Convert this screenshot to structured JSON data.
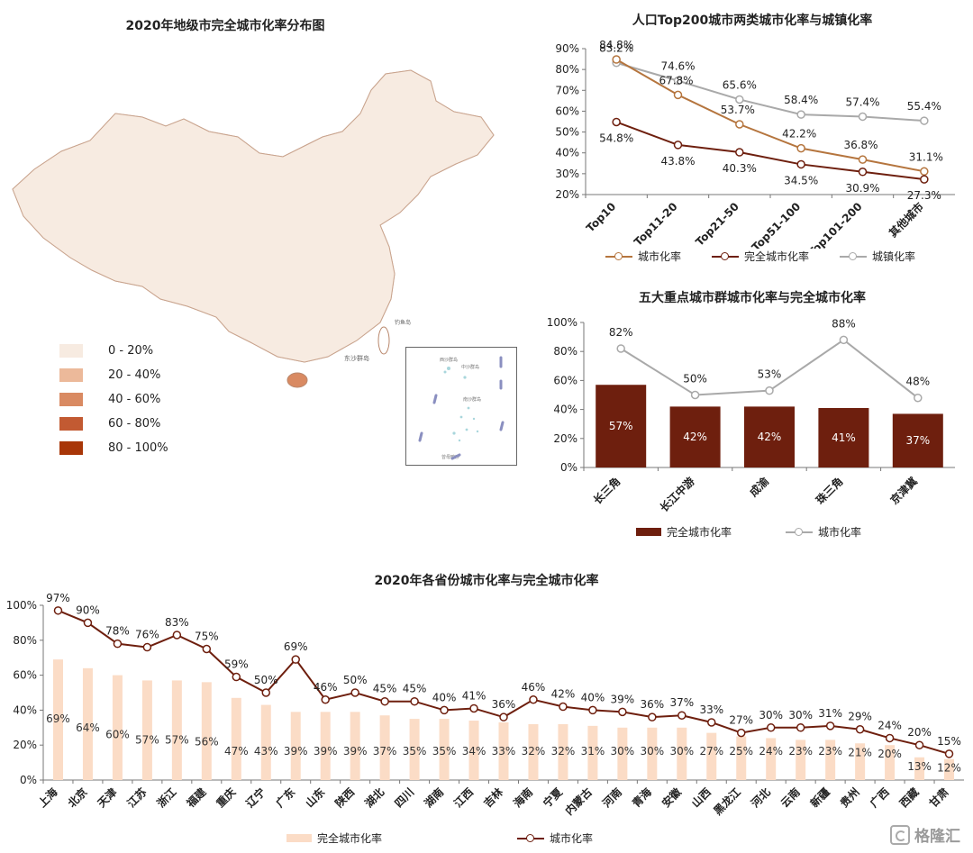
{
  "map_panel": {
    "title": "2020年地级市完全城市化率分布图",
    "legend": [
      {
        "label": "0 - 20%",
        "color": "#f7ebe1"
      },
      {
        "label": "20 - 40%",
        "color": "#ecb99a"
      },
      {
        "label": "40 - 60%",
        "color": "#d98a62"
      },
      {
        "label": "60 - 80%",
        "color": "#c25a32"
      },
      {
        "label": "80 - 100%",
        "color": "#a83608"
      }
    ],
    "labels": {
      "diaoyu": "钓鱼岛",
      "chiwei": "赤尾屿",
      "dongsha": "东沙群岛",
      "xisha": "西沙群岛",
      "zhongsha": "中沙群岛",
      "nansha": "南沙群岛",
      "zengmu": "曾母暗沙"
    }
  },
  "chart_data": [
    {
      "id": "top200",
      "type": "line",
      "title": "人口Top200城市两类城市化率与城镇化率",
      "categories": [
        "Top10",
        "Top11-20",
        "Top21-50",
        "Top51-100",
        "Top101-200",
        "其他城市"
      ],
      "ylim": [
        20,
        90
      ],
      "yticks": [
        "20%",
        "30%",
        "40%",
        "50%",
        "60%",
        "70%",
        "80%",
        "90%"
      ],
      "series": [
        {
          "name": "城市化率",
          "color": "#b5753e",
          "values": [
            84.8,
            67.8,
            53.7,
            42.2,
            36.8,
            31.1
          ],
          "labels": [
            "84.8%",
            "67.8%",
            "53.7%",
            "42.2%",
            "36.8%",
            "31.1%"
          ]
        },
        {
          "name": "完全城市化率",
          "color": "#6e1f0e",
          "values": [
            54.8,
            43.8,
            40.3,
            34.5,
            30.9,
            27.3
          ],
          "labels": [
            "54.8%",
            "43.8%",
            "40.3%",
            "34.5%",
            "30.9%",
            "27.3%"
          ]
        },
        {
          "name": "城镇化率",
          "color": "#a9a9a9",
          "values": [
            83.2,
            74.6,
            65.6,
            58.4,
            57.4,
            55.4
          ],
          "labels": [
            "83.2%",
            "74.6%",
            "65.6%",
            "58.4%",
            "57.4%",
            "55.4%"
          ]
        }
      ]
    },
    {
      "id": "clusters",
      "type": "bar",
      "title": "五大重点城市群城市化率与完全城市化率",
      "categories": [
        "长三角",
        "长江中游",
        "成渝",
        "珠三角",
        "京津冀"
      ],
      "ylim": [
        0,
        100
      ],
      "yticks": [
        "0%",
        "20%",
        "40%",
        "60%",
        "80%",
        "100%"
      ],
      "series": [
        {
          "name": "完全城市化率",
          "kind": "bar",
          "color": "#6e1f0e",
          "values": [
            57,
            42,
            42,
            41,
            37
          ],
          "labels": [
            "57%",
            "42%",
            "42%",
            "41%",
            "37%"
          ]
        },
        {
          "name": "城市化率",
          "kind": "line",
          "color": "#a9a9a9",
          "values": [
            82,
            50,
            53,
            88,
            48
          ],
          "labels": [
            "82%",
            "50%",
            "53%",
            "88%",
            "48%"
          ]
        }
      ]
    },
    {
      "id": "provinces",
      "type": "bar",
      "title": "2020年各省份城市化率与完全城市化率",
      "categories": [
        "上海",
        "北京",
        "天津",
        "江苏",
        "浙江",
        "福建",
        "重庆",
        "辽宁",
        "广东",
        "山东",
        "陕西",
        "湖北",
        "四川",
        "湖南",
        "江西",
        "吉林",
        "海南",
        "宁夏",
        "内蒙古",
        "河南",
        "青海",
        "安徽",
        "山西",
        "黑龙江",
        "河北",
        "云南",
        "新疆",
        "贵州",
        "广西",
        "西藏",
        "甘肃"
      ],
      "ylim": [
        0,
        100
      ],
      "yticks": [
        "0%",
        "20%",
        "40%",
        "60%",
        "80%",
        "100%"
      ],
      "series": [
        {
          "name": "完全城市化率",
          "kind": "bar",
          "color": "#fbdcc6",
          "values": [
            69,
            64,
            60,
            57,
            57,
            56,
            47,
            43,
            39,
            39,
            39,
            37,
            35,
            35,
            34,
            33,
            32,
            32,
            31,
            30,
            30,
            30,
            27,
            25,
            24,
            23,
            23,
            21,
            20,
            13,
            12
          ],
          "labels": [
            "69%",
            "64%",
            "60%",
            "57%",
            "57%",
            "56%",
            "47%",
            "43%",
            "39%",
            "39%",
            "39%",
            "37%",
            "35%",
            "35%",
            "34%",
            "33%",
            "32%",
            "32%",
            "31%",
            "30%",
            "30%",
            "30%",
            "27%",
            "25%",
            "24%",
            "23%",
            "23%",
            "21%",
            "20%",
            "13%",
            "12%"
          ]
        },
        {
          "name": "城市化率",
          "kind": "line",
          "color": "#6e1f0e",
          "values": [
            97,
            90,
            78,
            76,
            83,
            75,
            59,
            50,
            69,
            46,
            50,
            45,
            45,
            40,
            41,
            36,
            46,
            42,
            40,
            39,
            36,
            37,
            33,
            27,
            30,
            30,
            31,
            29,
            24,
            20,
            15
          ],
          "labels": [
            "97%",
            "90%",
            "78%",
            "76%",
            "83%",
            "75%",
            "59%",
            "50%",
            "69%",
            "46%",
            "50%",
            "45%",
            "45%",
            "40%",
            "41%",
            "36%",
            "46%",
            "42%",
            "40%",
            "39%",
            "36%",
            "37%",
            "33%",
            "27%",
            "30%",
            "30%",
            "31%",
            "29%",
            "24%",
            "20%",
            "15%"
          ]
        }
      ]
    }
  ],
  "watermark": {
    "text": "格隆汇",
    "icon": "gelonghui-logo-icon"
  }
}
